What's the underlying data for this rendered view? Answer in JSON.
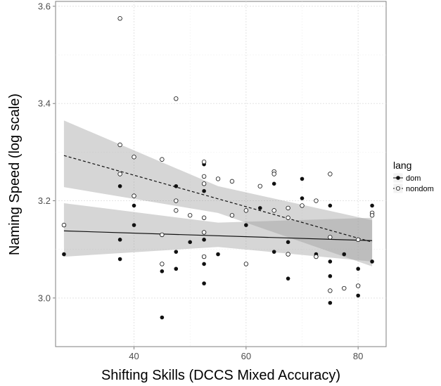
{
  "chart_data": {
    "type": "scatter",
    "xlabel": "Shifting Skills (DCCS Mixed Accuracy)",
    "ylabel": "Naming Speed (log scale)",
    "xlim": [
      26,
      85
    ],
    "ylim": [
      2.9,
      3.61
    ],
    "x_ticks": [
      40,
      60,
      80
    ],
    "y_ticks": [
      3.0,
      3.2,
      3.4,
      3.6
    ],
    "x_tick_labels": [
      "40",
      "60",
      "80"
    ],
    "y_tick_labels": [
      "3.0",
      "3.2",
      "3.4",
      "3.6"
    ],
    "grid": true,
    "legend": {
      "title": "lang",
      "position": "right",
      "entries": [
        "dom",
        "nondom"
      ]
    },
    "series": [
      {
        "name": "dom",
        "marker": "filled-circle",
        "points": [
          [
            27.5,
            3.09
          ],
          [
            37.5,
            3.23
          ],
          [
            37.5,
            3.12
          ],
          [
            37.5,
            3.08
          ],
          [
            40,
            3.19
          ],
          [
            40,
            3.15
          ],
          [
            45,
            3.055
          ],
          [
            45,
            2.96
          ],
          [
            47.5,
            3.23
          ],
          [
            47.5,
            3.06
          ],
          [
            47.5,
            3.095
          ],
          [
            50,
            3.115
          ],
          [
            52.5,
            3.275
          ],
          [
            52.5,
            3.22
          ],
          [
            52.5,
            3.12
          ],
          [
            52.5,
            3.07
          ],
          [
            52.5,
            3.03
          ],
          [
            55,
            3.09
          ],
          [
            57.5,
            3.17
          ],
          [
            60,
            3.15
          ],
          [
            62.5,
            3.185
          ],
          [
            65,
            3.235
          ],
          [
            65,
            3.095
          ],
          [
            67.5,
            3.115
          ],
          [
            67.5,
            3.04
          ],
          [
            70,
            3.245
          ],
          [
            70,
            3.205
          ],
          [
            72.5,
            3.09
          ],
          [
            75,
            3.19
          ],
          [
            75,
            3.075
          ],
          [
            75,
            3.045
          ],
          [
            75,
            2.99
          ],
          [
            77.5,
            3.09
          ],
          [
            80,
            3.06
          ],
          [
            80,
            3.005
          ],
          [
            82.5,
            3.19
          ],
          [
            82.5,
            3.075
          ]
        ],
        "fit_line": {
          "style": "solid",
          "x": [
            27.5,
            82.5
          ],
          "y": [
            3.138,
            3.118
          ]
        },
        "ci_band": {
          "x": [
            27.5,
            55,
            82.5
          ],
          "lower": [
            3.085,
            3.105,
            3.075
          ],
          "upper": [
            3.195,
            3.155,
            3.165
          ]
        }
      },
      {
        "name": "nondom",
        "marker": "open-circle",
        "points": [
          [
            27.5,
            3.15
          ],
          [
            37.5,
            3.575
          ],
          [
            37.5,
            3.315
          ],
          [
            37.5,
            3.255
          ],
          [
            40,
            3.29
          ],
          [
            40,
            3.21
          ],
          [
            45,
            3.285
          ],
          [
            45,
            3.13
          ],
          [
            45,
            3.07
          ],
          [
            47.5,
            3.41
          ],
          [
            47.5,
            3.2
          ],
          [
            47.5,
            3.18
          ],
          [
            50,
            3.17
          ],
          [
            52.5,
            3.28
          ],
          [
            52.5,
            3.25
          ],
          [
            52.5,
            3.235
          ],
          [
            52.5,
            3.165
          ],
          [
            52.5,
            3.135
          ],
          [
            52.5,
            3.085
          ],
          [
            55,
            3.245
          ],
          [
            57.5,
            3.24
          ],
          [
            57.5,
            3.17
          ],
          [
            60,
            3.18
          ],
          [
            60,
            3.07
          ],
          [
            62.5,
            3.23
          ],
          [
            65,
            3.26
          ],
          [
            65,
            3.255
          ],
          [
            65,
            3.18
          ],
          [
            67.5,
            3.185
          ],
          [
            67.5,
            3.165
          ],
          [
            67.5,
            3.09
          ],
          [
            70,
            3.19
          ],
          [
            72.5,
            3.2
          ],
          [
            72.5,
            3.085
          ],
          [
            75,
            3.255
          ],
          [
            75,
            3.125
          ],
          [
            75,
            3.015
          ],
          [
            77.5,
            3.02
          ],
          [
            80,
            3.12
          ],
          [
            80,
            3.025
          ],
          [
            82.5,
            3.175
          ],
          [
            82.5,
            3.17
          ]
        ],
        "fit_line": {
          "style": "dashed",
          "x": [
            27.5,
            82.5
          ],
          "y": [
            3.293,
            3.115
          ]
        },
        "ci_band": {
          "x": [
            27.5,
            55,
            82.5
          ],
          "lower": [
            3.228,
            3.175,
            3.065
          ],
          "upper": [
            3.365,
            3.23,
            3.16
          ]
        }
      }
    ]
  }
}
